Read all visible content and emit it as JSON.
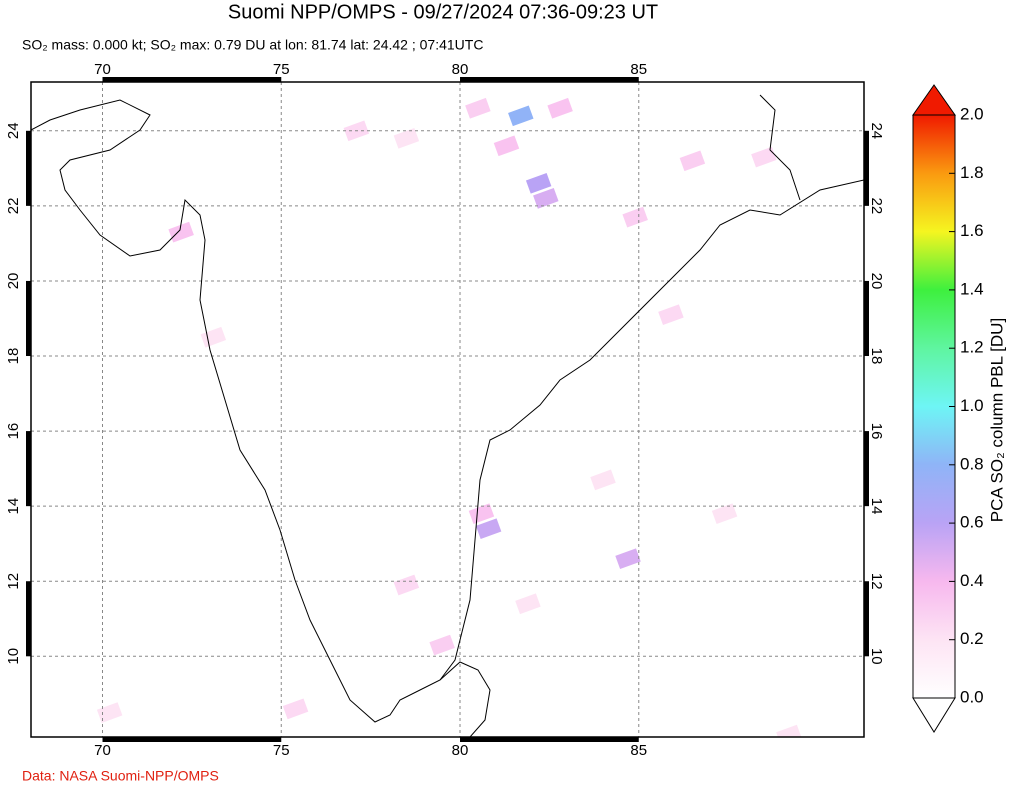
{
  "chart_data": {
    "type": "map",
    "title": "Suomi NPP/OMPS - 09/27/2024 07:36-09:23 UT",
    "subtitle": "SO₂ mass: 0.000 kt; SO₂ max: 0.79 DU at lon: 81.74 lat: 24.42 ; 07:41UTC",
    "source": "Data: NASA Suomi-NPP/OMPS",
    "colorbar_label": "PCA SO₂ column PBL [DU]",
    "xlim": [
      68,
      91.3
    ],
    "ylim": [
      7.85,
      25.3
    ],
    "xticks": [
      70,
      75,
      80,
      85
    ],
    "yticks": [
      10,
      12,
      14,
      16,
      18,
      20,
      22,
      24
    ],
    "grid": true,
    "clim": [
      0,
      2
    ],
    "cticks": [
      {
        "value": 0,
        "label": "0.0"
      },
      {
        "value": 0.2,
        "label": "0.2"
      },
      {
        "value": 0.4,
        "label": "0.4"
      },
      {
        "value": 0.6,
        "label": "0.6"
      },
      {
        "value": 0.8,
        "label": "0.8"
      },
      {
        "value": 1,
        "label": "1.0"
      },
      {
        "value": 1.2,
        "label": "1.2"
      },
      {
        "value": 1.4,
        "label": "1.4"
      },
      {
        "value": 1.6,
        "label": "1.6"
      },
      {
        "value": 1.8,
        "label": "1.8"
      },
      {
        "value": 2,
        "label": "2.0"
      }
    ],
    "pixels": {
      "lon": [
        81.7,
        82.2,
        82.4,
        80.8,
        80.6,
        84.7,
        79.5,
        75.4,
        72.2,
        81.3,
        86.5,
        84.9,
        88.5,
        78.5,
        82.8,
        80.5,
        77.1,
        73.1,
        85.9,
        81.9,
        87.4,
        70.2,
        89.2,
        84.0,
        78.5
      ],
      "lat": [
        24.4,
        22.6,
        22.2,
        13.4,
        13.8,
        12.6,
        10.3,
        8.6,
        21.3,
        23.6,
        23.2,
        21.7,
        23.3,
        23.8,
        24.6,
        24.6,
        24.0,
        18.5,
        19.1,
        11.4,
        13.8,
        8.5,
        7.9,
        14.7,
        11.9
      ],
      "values": [
        0.79,
        0.6,
        0.5,
        0.55,
        0.35,
        0.5,
        0.3,
        0.25,
        0.35,
        0.35,
        0.3,
        0.3,
        0.25,
        0.2,
        0.35,
        0.3,
        0.25,
        0.2,
        0.25,
        0.2,
        0.2,
        0.2,
        0.2,
        0.2,
        0.25
      ]
    }
  }
}
